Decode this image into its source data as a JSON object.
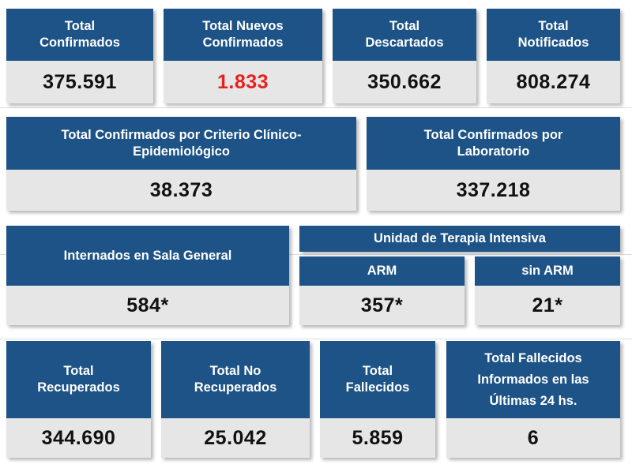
{
  "row1": [
    {
      "label": "Total\nConfirmados",
      "value": "375.591"
    },
    {
      "label": "Total Nuevos\nConfirmados",
      "value": "1.833",
      "value_color": "#e8201c"
    },
    {
      "label": "Total\nDescartados",
      "value": "350.662"
    },
    {
      "label": "Total\nNotificados",
      "value": "808.274"
    }
  ],
  "row2": [
    {
      "label": "Total Confirmados por Criterio Clínico-\nEpidemiológico",
      "value": "38.373"
    },
    {
      "label": "Total Confirmados por\nLaboratorio",
      "value": "337.218"
    }
  ],
  "row3": {
    "sala_general": {
      "label": "Internados en Sala General",
      "value": "584*"
    },
    "uti": {
      "title": "Unidad de Terapia Intensiva",
      "arm": {
        "label": "ARM",
        "value": "357*"
      },
      "sin_arm": {
        "label": "sin ARM",
        "value": "21*"
      }
    }
  },
  "row4": [
    {
      "label": "Total\nRecuperados",
      "value": "344.690"
    },
    {
      "label": "Total No\nRecuperados",
      "value": "25.042"
    },
    {
      "label": "Total\nFallecidos",
      "value": "5.859"
    },
    {
      "label": "Total Fallecidos\nInformados en las\nÚltimas 24 hs.",
      "value": "6"
    }
  ],
  "colors": {
    "header_bg": "#1d5386",
    "value_bg": "#e6e6e6",
    "highlight": "#e8201c"
  }
}
